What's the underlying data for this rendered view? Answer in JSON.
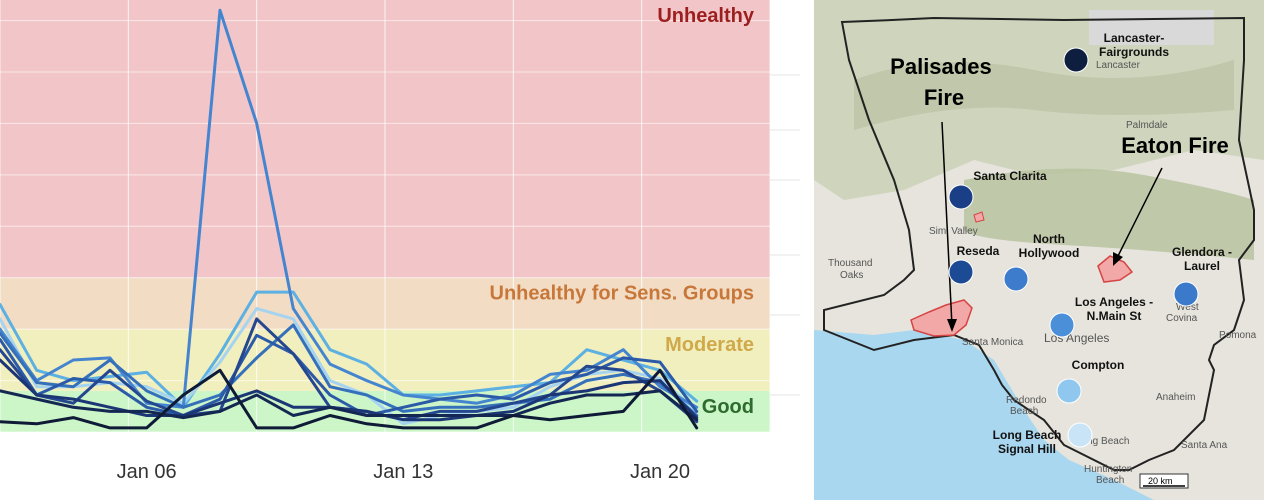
{
  "chart_data": {
    "type": "line",
    "x_tick_labels": [
      "Jan 06",
      "Jan 13",
      "Jan 20"
    ],
    "x_ticks": [
      "2025-01-06",
      "2025-01-13",
      "2025-01-20"
    ],
    "xlim": [
      "2025-01-02",
      "2025-01-23"
    ],
    "ylim": [
      0,
      210
    ],
    "grid": true,
    "bands": [
      {
        "label": "Good",
        "from": 0,
        "to": 20,
        "color": "#ccf5c8",
        "label_color": "#2e6b2e"
      },
      {
        "label": "Moderate",
        "from": 20,
        "to": 50,
        "color": "#f2efbe",
        "label_color": "#cfa94a"
      },
      {
        "label": "Unhealthy for Sens. Groups",
        "from": 50,
        "to": 75,
        "color": "#f2ddc4",
        "label_color": "#c8773a"
      },
      {
        "label": "Unhealthy",
        "from": 75,
        "to": 210,
        "color": "#f2c6c8",
        "label_color": "#9c1e1e"
      }
    ],
    "x": [
      "2025-01-02",
      "2025-01-03",
      "2025-01-04",
      "2025-01-05",
      "2025-01-06",
      "2025-01-07",
      "2025-01-08",
      "2025-01-09",
      "2025-01-10",
      "2025-01-11",
      "2025-01-12",
      "2025-01-13",
      "2025-01-14",
      "2025-01-15",
      "2025-01-16",
      "2025-01-17",
      "2025-01-18",
      "2025-01-19",
      "2025-01-20",
      "2025-01-21"
    ],
    "series": [
      {
        "color": "#5db0e2",
        "values": [
          62,
          30,
          25,
          27,
          29,
          12,
          38,
          68,
          68,
          40,
          33,
          18,
          18,
          20,
          22,
          24,
          40,
          35,
          30,
          15
        ]
      },
      {
        "color": "#a6d4f0",
        "values": [
          55,
          22,
          22,
          24,
          22,
          14,
          34,
          60,
          55,
          25,
          18,
          4,
          8,
          10,
          12,
          22,
          28,
          30,
          26,
          10
        ]
      },
      {
        "color": "#4585d0",
        "values": [
          50,
          25,
          35,
          36,
          14,
          12,
          205,
          150,
          60,
          33,
          25,
          18,
          16,
          14,
          18,
          28,
          30,
          40,
          22,
          12
        ]
      },
      {
        "color": "#3570bb",
        "values": [
          48,
          24,
          22,
          35,
          20,
          12,
          18,
          36,
          52,
          22,
          18,
          10,
          12,
          12,
          14,
          16,
          25,
          28,
          24,
          8
        ]
      },
      {
        "color": "#2b5aa8",
        "values": [
          45,
          18,
          26,
          24,
          12,
          8,
          16,
          47,
          38,
          18,
          8,
          12,
          16,
          18,
          16,
          24,
          28,
          36,
          34,
          10
        ]
      },
      {
        "color": "#24478f",
        "values": [
          40,
          18,
          14,
          30,
          15,
          8,
          10,
          55,
          38,
          12,
          10,
          6,
          10,
          10,
          14,
          18,
          32,
          30,
          20,
          5
        ]
      },
      {
        "color": "#1b3575",
        "values": [
          35,
          18,
          16,
          12,
          8,
          8,
          14,
          20,
          12,
          12,
          10,
          6,
          6,
          8,
          10,
          18,
          20,
          24,
          25,
          7
        ]
      },
      {
        "color": "#132752",
        "values": [
          20,
          16,
          12,
          10,
          10,
          7,
          10,
          18,
          8,
          12,
          8,
          8,
          8,
          8,
          8,
          14,
          18,
          18,
          20,
          6
        ]
      },
      {
        "color": "#0e1a36",
        "values": [
          5,
          4,
          7,
          2,
          2,
          18,
          30,
          2,
          2,
          8,
          4,
          2,
          2,
          2,
          8,
          6,
          8,
          10,
          30,
          2
        ]
      }
    ]
  },
  "map": {
    "fires": [
      {
        "label": "Palisades\nFire"
      },
      {
        "label": "Eaton Fire"
      }
    ],
    "stations": [
      {
        "label": "Lancaster-\nFairgrounds",
        "color": "#0d1e3f"
      },
      {
        "label": "Santa Clarita",
        "color": "#1b3f86"
      },
      {
        "label": "Reseda",
        "color": "#1d4a94"
      },
      {
        "label": "North\nHollywood",
        "color": "#3d7bcc"
      },
      {
        "label": "Glendora -\nLaurel",
        "color": "#3b7acb"
      },
      {
        "label": "Los Angeles -\nN.Main St",
        "color": "#4b8fd9"
      },
      {
        "label": "Compton",
        "color": "#8fc7ee"
      },
      {
        "label": "Long Beach\nSignal Hill",
        "color": "#c8e4f6"
      }
    ],
    "basemap_labels": [
      "Lancaster",
      "Palmdale",
      "Thousand\nOaks",
      "Simi Valley",
      "Santa Monica",
      "Los Angeles",
      "Redondo\nBeach",
      "Long Beach",
      "Huntington\nBeach",
      "Anaheim",
      "Santa Ana",
      "West\nCovina",
      "Pomona"
    ],
    "scale_label": "20 km"
  }
}
